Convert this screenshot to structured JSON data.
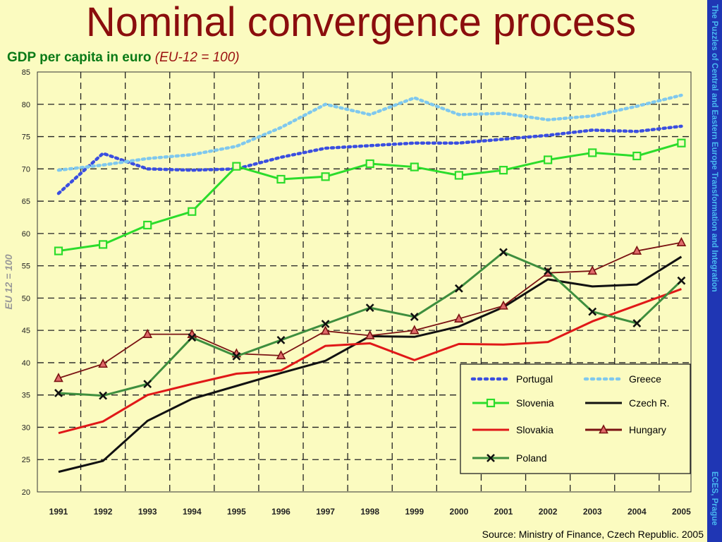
{
  "slide": {
    "title": "Nominal convergence process",
    "subtitle_main": "GDP per capita in euro",
    "subtitle_note": "(EU-12 = 100)",
    "side_text_top": "The Puzzles of Central and Eastern Europe Transformation and Integration",
    "side_text_bottom": "ECES, Prague",
    "source": "Source: Ministry of Finance, Czech Republic. 2005"
  },
  "colors": {
    "background": "#fbfbc0",
    "title": "#8b0d0d",
    "subtitle": "#0a7a16",
    "side_band": "#1f36b4",
    "side_text": "#48b8f0"
  },
  "chart_data": {
    "type": "line",
    "ylabel": "EU 12 = 100",
    "ylim": [
      20,
      85
    ],
    "yticks": [
      20,
      25,
      30,
      35,
      40,
      45,
      50,
      55,
      60,
      65,
      70,
      75,
      80,
      85
    ],
    "grid": true,
    "legend_position": "bottom-right",
    "x": [
      "1991",
      "1992",
      "1993",
      "1994",
      "1995",
      "1996",
      "1997",
      "1998",
      "1999",
      "2000",
      "2001",
      "2002",
      "2003",
      "2004",
      "2005"
    ],
    "series": [
      {
        "name": "Portugal",
        "color": "#3a4ee0",
        "style": "dotted",
        "marker": "none",
        "values": [
          66.2,
          72.4,
          70.0,
          69.8,
          70.0,
          71.8,
          73.2,
          73.6,
          74.0,
          74.0,
          74.6,
          75.2,
          76.0,
          75.8,
          76.6
        ]
      },
      {
        "name": "Greece",
        "color": "#7fc8ee",
        "style": "dotted",
        "marker": "none",
        "values": [
          69.8,
          70.6,
          71.6,
          72.2,
          73.5,
          76.4,
          80.0,
          78.4,
          81.0,
          78.4,
          78.6,
          77.6,
          78.2,
          79.7,
          81.4
        ]
      },
      {
        "name": "Slovenia",
        "color": "#2bdc2b",
        "style": "solid",
        "marker": "square",
        "values": [
          57.3,
          58.3,
          61.3,
          63.4,
          70.4,
          68.4,
          68.8,
          70.8,
          70.3,
          69.0,
          69.8,
          71.4,
          72.5,
          72.0,
          74.0
        ]
      },
      {
        "name": "Czech R.",
        "color": "#111111",
        "style": "solid",
        "marker": "none",
        "values": [
          23.1,
          24.8,
          31.0,
          34.4,
          36.4,
          38.4,
          40.3,
          44.1,
          44.0,
          45.6,
          48.6,
          52.9,
          51.8,
          52.1,
          56.4
        ]
      },
      {
        "name": "Slovakia",
        "color": "#e01818",
        "style": "solid",
        "marker": "none",
        "values": [
          29.1,
          30.9,
          35.0,
          36.7,
          38.3,
          38.8,
          42.6,
          43.0,
          40.4,
          42.9,
          42.8,
          43.2,
          46.4,
          48.9,
          51.4
        ]
      },
      {
        "name": "Hungary",
        "color": "#7a1212",
        "style": "solid",
        "marker": "triangle",
        "values": [
          37.6,
          39.8,
          44.4,
          44.4,
          41.4,
          41.1,
          44.9,
          44.2,
          45.0,
          46.8,
          48.8,
          53.9,
          54.2,
          57.3,
          58.6
        ]
      },
      {
        "name": "Poland",
        "color": "#3e8e3e",
        "style": "solid",
        "marker": "x",
        "values": [
          35.3,
          34.9,
          36.7,
          43.9,
          41.0,
          43.5,
          46.0,
          48.5,
          47.1,
          51.5,
          57.1,
          54.2,
          47.9,
          46.1,
          52.7
        ]
      }
    ]
  }
}
